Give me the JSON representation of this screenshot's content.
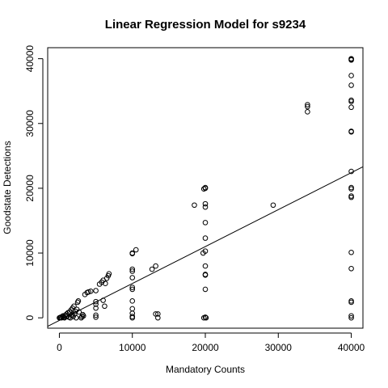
{
  "chart_data": {
    "type": "scatter",
    "title": "Linear Regression Model for s9234",
    "xlabel": "Mandatory Counts",
    "ylabel": "Goodstate Detections",
    "xlim": [
      -1600,
      41600
    ],
    "ylim": [
      -1600,
      41700
    ],
    "xticks": [
      0,
      10000,
      20000,
      30000,
      40000
    ],
    "yticks": [
      0,
      10000,
      20000,
      30000,
      40000
    ],
    "xtick_labels": [
      "0",
      "10000",
      "20000",
      "30000",
      "40000"
    ],
    "ytick_labels": [
      "0",
      "10000",
      "20000",
      "30000",
      "40000"
    ],
    "grid": false,
    "regression_line": {
      "intercept": -400,
      "slope": 0.57
    },
    "points": [
      [
        0,
        0
      ],
      [
        100,
        50
      ],
      [
        200,
        100
      ],
      [
        300,
        0
      ],
      [
        400,
        200
      ],
      [
        500,
        300
      ],
      [
        600,
        100
      ],
      [
        700,
        0
      ],
      [
        800,
        400
      ],
      [
        900,
        200
      ],
      [
        1000,
        600
      ],
      [
        1100,
        300
      ],
      [
        1200,
        800
      ],
      [
        1300,
        100
      ],
      [
        1400,
        900
      ],
      [
        1500,
        0
      ],
      [
        1600,
        1200
      ],
      [
        1700,
        400
      ],
      [
        1800,
        1500
      ],
      [
        1900,
        200
      ],
      [
        2000,
        1800
      ],
      [
        2100,
        600
      ],
      [
        2200,
        1000
      ],
      [
        2300,
        0
      ],
      [
        2400,
        1300
      ],
      [
        2500,
        2400
      ],
      [
        2600,
        2600
      ],
      [
        2700,
        900
      ],
      [
        3000,
        0
      ],
      [
        3100,
        200
      ],
      [
        3200,
        500
      ],
      [
        3300,
        300
      ],
      [
        3500,
        3600
      ],
      [
        3800,
        3900
      ],
      [
        4000,
        4000
      ],
      [
        4300,
        4100
      ],
      [
        5000,
        4200
      ],
      [
        5000,
        2500
      ],
      [
        5000,
        2100
      ],
      [
        5000,
        1500
      ],
      [
        5000,
        400
      ],
      [
        5000,
        100
      ],
      [
        5500,
        5200
      ],
      [
        5800,
        5500
      ],
      [
        6000,
        5800
      ],
      [
        6000,
        2700
      ],
      [
        6200,
        1800
      ],
      [
        6300,
        5300
      ],
      [
        6500,
        6100
      ],
      [
        6700,
        6500
      ],
      [
        6800,
        6800
      ],
      [
        10000,
        10000
      ],
      [
        10000,
        9900
      ],
      [
        10000,
        7500
      ],
      [
        10000,
        7200
      ],
      [
        10000,
        6200
      ],
      [
        10000,
        4700
      ],
      [
        10000,
        4400
      ],
      [
        10000,
        2600
      ],
      [
        10000,
        1400
      ],
      [
        10000,
        700
      ],
      [
        10000,
        200
      ],
      [
        10000,
        0
      ],
      [
        10500,
        10500
      ],
      [
        12700,
        7500
      ],
      [
        13200,
        8000
      ],
      [
        13200,
        600
      ],
      [
        13500,
        600
      ],
      [
        13500,
        0
      ],
      [
        18500,
        17400
      ],
      [
        19700,
        10000
      ],
      [
        19800,
        19900
      ],
      [
        20000,
        20100
      ],
      [
        20000,
        20000
      ],
      [
        20000,
        17600
      ],
      [
        20000,
        17100
      ],
      [
        20000,
        14700
      ],
      [
        20000,
        12300
      ],
      [
        20000,
        10300
      ],
      [
        20000,
        8000
      ],
      [
        20000,
        6700
      ],
      [
        20000,
        6600
      ],
      [
        20000,
        4400
      ],
      [
        20000,
        100
      ],
      [
        19800,
        0
      ],
      [
        20100,
        0
      ],
      [
        29300,
        17400
      ],
      [
        34000,
        32900
      ],
      [
        34000,
        32600
      ],
      [
        34000,
        31800
      ],
      [
        40000,
        40000
      ],
      [
        40000,
        39900
      ],
      [
        40000,
        39800
      ],
      [
        40000,
        37400
      ],
      [
        40000,
        35900
      ],
      [
        40000,
        33600
      ],
      [
        40000,
        33400
      ],
      [
        40000,
        32500
      ],
      [
        40000,
        28800
      ],
      [
        40000,
        28700
      ],
      [
        40000,
        22600
      ],
      [
        40000,
        20100
      ],
      [
        40000,
        19900
      ],
      [
        40000,
        18800
      ],
      [
        40000,
        18600
      ],
      [
        40000,
        10100
      ],
      [
        40000,
        7600
      ],
      [
        40000,
        2600
      ],
      [
        40000,
        2400
      ],
      [
        40000,
        300
      ],
      [
        40000,
        0
      ]
    ]
  }
}
